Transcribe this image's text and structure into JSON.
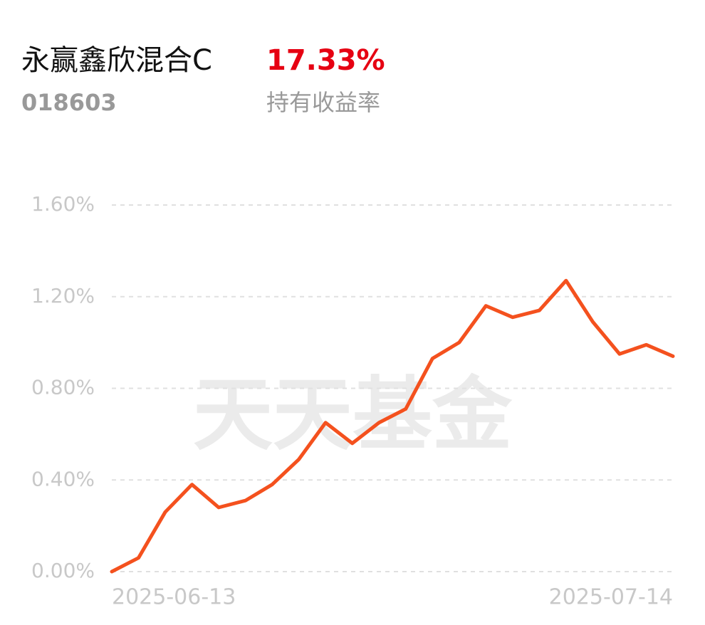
{
  "header": {
    "title": "永赢鑫欣混合C",
    "return": "17.33%",
    "code": "018603",
    "return_label": "持有收益率"
  },
  "chart_data": {
    "type": "line",
    "watermark": "天天基金",
    "categories": [
      "2025-06-13",
      null,
      null,
      null,
      null,
      null,
      null,
      null,
      null,
      null,
      null,
      null,
      null,
      null,
      null,
      null,
      null,
      null,
      null,
      null,
      null,
      "2025-07-14"
    ],
    "series": [
      {
        "color": "#f4511e",
        "values": [
          0,
          0.06,
          0.26,
          0.38,
          0.28,
          0.31,
          0.38,
          0.49,
          0.65,
          0.56,
          0.65,
          0.71,
          0.93,
          1.0,
          1.16,
          1.11,
          1.14,
          1.27,
          1.09,
          0.95,
          0.99,
          0.94
        ]
      }
    ],
    "ylim": [
      0,
      1.6
    ],
    "yticks": [
      {
        "value": 0,
        "label": "0.00%"
      },
      {
        "value": 0.4,
        "label": "0.40%"
      },
      {
        "value": 0.8,
        "label": "0.80%"
      },
      {
        "value": 1.2,
        "label": "1.20%"
      },
      {
        "value": 1.6,
        "label": "1.60%"
      }
    ],
    "grid": true
  }
}
